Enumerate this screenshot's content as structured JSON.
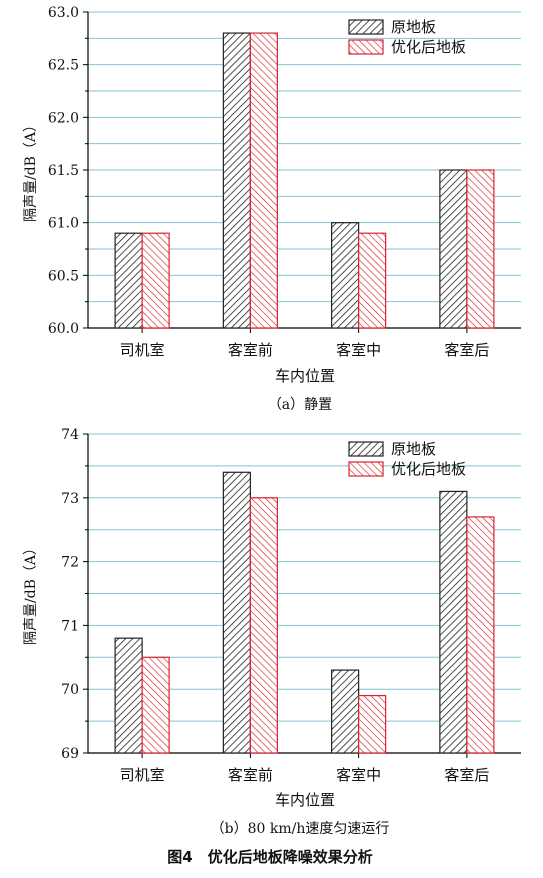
{
  "figure_title": "图4　优化后地板降噪效果分析",
  "chart_data": [
    {
      "type": "bar",
      "subtitle": "（a）静置",
      "xlabel": "车内位置",
      "ylabel": "隔声量/dB（A）",
      "categories": [
        "司机室",
        "客室前",
        "客室中",
        "客室后"
      ],
      "series": [
        {
          "name": "原地板",
          "values": [
            60.9,
            62.8,
            61.0,
            61.5
          ],
          "color": "#222222"
        },
        {
          "name": "优化后地板",
          "values": [
            60.9,
            62.8,
            60.9,
            61.5
          ],
          "color": "#d9232d"
        }
      ],
      "ylim": [
        60.0,
        63.0
      ],
      "yticks": [
        "60.0",
        "60.5",
        "61.0",
        "61.5",
        "62.0",
        "62.5",
        "63.0"
      ],
      "grid_color": "#7fc6d4",
      "legend_position": "top-right"
    },
    {
      "type": "bar",
      "subtitle": "（b）80 km/h速度匀速运行",
      "xlabel": "车内位置",
      "ylabel": "隔声量/dB（A）",
      "categories": [
        "司机室",
        "客室前",
        "客室中",
        "客室后"
      ],
      "series": [
        {
          "name": "原地板",
          "values": [
            70.8,
            73.4,
            70.3,
            73.1
          ],
          "color": "#222222"
        },
        {
          "name": "优化后地板",
          "values": [
            70.5,
            73.0,
            69.9,
            72.7
          ],
          "color": "#d9232d"
        }
      ],
      "ylim": [
        69,
        74
      ],
      "yticks": [
        "69",
        "70",
        "71",
        "72",
        "73",
        "74"
      ],
      "grid_color": "#7fc6d4",
      "legend_position": "top-right"
    }
  ]
}
